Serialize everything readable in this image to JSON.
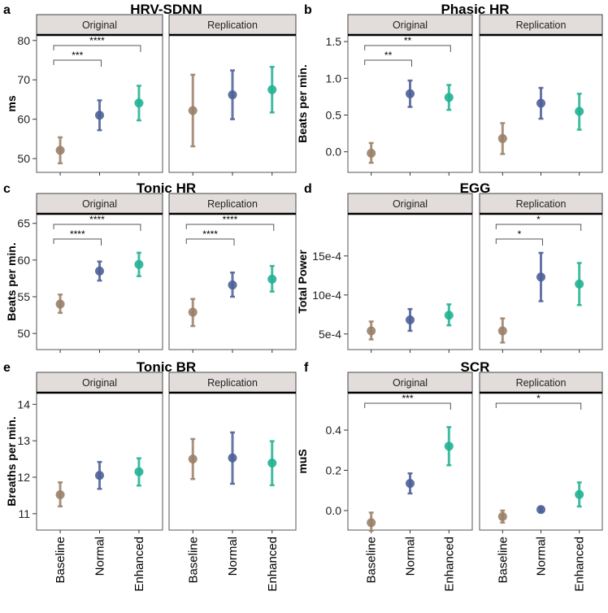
{
  "colors": {
    "Baseline": "#9a8068",
    "Normal": "#4d5f98",
    "Enhanced": "#22b193"
  },
  "conditions": [
    "Baseline",
    "Normal",
    "Enhanced"
  ],
  "facets": [
    "Original",
    "Replication"
  ],
  "chart_data": [
    {
      "type": "scatter",
      "label": "a",
      "title": "HRV-SDNN",
      "ylabel": "ms",
      "ylim": [
        46.5,
        81.4
      ],
      "yticks": [
        50,
        60,
        70,
        80
      ],
      "ytick_labels": [
        "50",
        "60",
        "70",
        "80"
      ],
      "facets": {
        "Original": {
          "mean": [
            52.1,
            61.0,
            64.1
          ],
          "lo": [
            48.8,
            57.2,
            59.7
          ],
          "hi": [
            55.4,
            64.8,
            68.5
          ],
          "brackets": [
            {
              "from": "Baseline",
              "to": "Normal",
              "label": "***"
            },
            {
              "from": "Baseline",
              "to": "Enhanced",
              "label": "****"
            }
          ]
        },
        "Replication": {
          "mean": [
            62.2,
            66.2,
            67.5
          ],
          "lo": [
            53.1,
            60.0,
            61.7
          ],
          "hi": [
            71.3,
            72.4,
            73.3
          ],
          "brackets": []
        }
      }
    },
    {
      "type": "scatter",
      "label": "b",
      "title": "Phasic HR",
      "ylabel": "Beats per min.",
      "ylim": [
        -0.28,
        1.59
      ],
      "yticks": [
        0,
        0.5,
        1.0,
        1.5
      ],
      "ytick_labels": [
        "0.0",
        "0.5",
        "1.0",
        "1.5"
      ],
      "facets": {
        "Original": {
          "mean": [
            -0.02,
            0.79,
            0.74
          ],
          "lo": [
            -0.15,
            0.61,
            0.57
          ],
          "hi": [
            0.12,
            0.97,
            0.91
          ],
          "brackets": [
            {
              "from": "Baseline",
              "to": "Normal",
              "label": "**"
            },
            {
              "from": "Baseline",
              "to": "Enhanced",
              "label": "**"
            }
          ]
        },
        "Replication": {
          "mean": [
            0.18,
            0.66,
            0.55
          ],
          "lo": [
            -0.03,
            0.45,
            0.3
          ],
          "hi": [
            0.39,
            0.87,
            0.79
          ],
          "brackets": []
        }
      }
    },
    {
      "type": "scatter",
      "label": "c",
      "title": "Tonic HR",
      "ylabel": "Beats per min.",
      "ylim": [
        47.8,
        66.3
      ],
      "yticks": [
        50,
        55,
        60,
        65
      ],
      "ytick_labels": [
        "50",
        "55",
        "60",
        "65"
      ],
      "facets": {
        "Original": {
          "mean": [
            54.0,
            58.5,
            59.4
          ],
          "lo": [
            52.8,
            57.2,
            57.8
          ],
          "hi": [
            55.3,
            59.8,
            61.0
          ],
          "brackets": [
            {
              "from": "Baseline",
              "to": "Normal",
              "label": "****"
            },
            {
              "from": "Baseline",
              "to": "Enhanced",
              "label": "****"
            }
          ]
        },
        "Replication": {
          "mean": [
            52.9,
            56.6,
            57.4
          ],
          "lo": [
            51.0,
            55.0,
            55.7
          ],
          "hi": [
            54.7,
            58.3,
            59.2
          ],
          "brackets": [
            {
              "from": "Baseline",
              "to": "Normal",
              "label": "****"
            },
            {
              "from": "Baseline",
              "to": "Enhanced",
              "label": "****"
            }
          ]
        }
      }
    },
    {
      "type": "scatter",
      "label": "d",
      "title": "EGG",
      "ylabel": "Total Power",
      "ylim": [
        3.0,
        20.4
      ],
      "yunit": "e-4",
      "yticks": [
        5,
        10,
        15
      ],
      "ytick_labels": [
        "5e-4",
        "10e-4",
        "15e-4"
      ],
      "facets": {
        "Original": {
          "mean": [
            5.4,
            6.8,
            7.4
          ],
          "lo": [
            4.3,
            5.4,
            6.1
          ],
          "hi": [
            6.6,
            8.2,
            8.8
          ],
          "brackets": []
        },
        "Replication": {
          "mean": [
            5.4,
            12.3,
            11.4
          ],
          "lo": [
            3.9,
            9.2,
            8.7
          ],
          "hi": [
            7.0,
            15.4,
            14.1
          ],
          "brackets": [
            {
              "from": "Baseline",
              "to": "Normal",
              "label": "*"
            },
            {
              "from": "Baseline",
              "to": "Enhanced",
              "label": "*"
            }
          ]
        }
      }
    },
    {
      "type": "scatter",
      "label": "e",
      "title": "Tonic BR",
      "ylabel": "Breaths per min.",
      "ylim": [
        10.55,
        14.32
      ],
      "yticks": [
        11,
        12,
        13,
        14
      ],
      "ytick_labels": [
        "11",
        "12",
        "13",
        "14"
      ],
      "facets": {
        "Original": {
          "mean": [
            11.52,
            12.05,
            12.15
          ],
          "lo": [
            11.2,
            11.68,
            11.77
          ],
          "hi": [
            11.86,
            12.42,
            12.52
          ],
          "brackets": []
        },
        "Replication": {
          "mean": [
            12.5,
            12.53,
            12.39
          ],
          "lo": [
            11.95,
            11.82,
            11.78
          ],
          "hi": [
            13.05,
            13.23,
            12.99
          ],
          "brackets": []
        }
      }
    },
    {
      "type": "scatter",
      "label": "f",
      "title": "SCR",
      "ylabel": "muS",
      "ylim": [
        -0.097,
        0.586
      ],
      "yticks": [
        0,
        0.2,
        0.4
      ],
      "ytick_labels": [
        "0.0",
        "0.2",
        "0.4"
      ],
      "facets": {
        "Original": {
          "mean": [
            -0.06,
            0.135,
            0.32
          ],
          "lo": [
            -0.1,
            0.085,
            0.225
          ],
          "hi": [
            -0.01,
            0.185,
            0.415
          ],
          "brackets": [
            {
              "from": "Baseline",
              "to": "Enhanced",
              "label": "***"
            }
          ]
        },
        "Replication": {
          "mean": [
            -0.03,
            0.005,
            0.08
          ],
          "lo": [
            -0.06,
            -0.005,
            0.02
          ],
          "hi": [
            0.0,
            0.015,
            0.14
          ],
          "brackets": [
            {
              "from": "Baseline",
              "to": "Enhanced",
              "label": "*"
            }
          ]
        }
      }
    }
  ]
}
